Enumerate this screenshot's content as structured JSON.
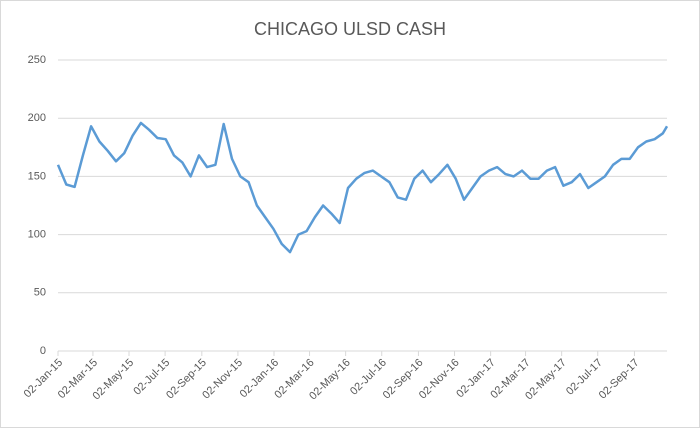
{
  "chart_data": {
    "type": "line",
    "title": "CHICAGO ULSD CASH",
    "color": "#5b9bd5",
    "grid": true,
    "x": [
      "2015-01-02",
      "2015-01-16",
      "2015-01-30",
      "2015-02-13",
      "2015-02-27",
      "2015-03-13",
      "2015-03-27",
      "2015-04-10",
      "2015-04-24",
      "2015-05-08",
      "2015-05-22",
      "2015-06-05",
      "2015-06-19",
      "2015-07-03",
      "2015-07-17",
      "2015-07-31",
      "2015-08-14",
      "2015-08-28",
      "2015-09-11",
      "2015-09-25",
      "2015-10-09",
      "2015-10-23",
      "2015-11-06",
      "2015-11-20",
      "2015-12-04",
      "2015-12-18",
      "2016-01-01",
      "2016-01-15",
      "2016-01-29",
      "2016-02-12",
      "2016-02-26",
      "2016-03-11",
      "2016-03-25",
      "2016-04-08",
      "2016-04-22",
      "2016-05-06",
      "2016-05-20",
      "2016-06-03",
      "2016-06-17",
      "2016-07-01",
      "2016-07-15",
      "2016-07-29",
      "2016-08-12",
      "2016-08-26",
      "2016-09-09",
      "2016-09-23",
      "2016-10-07",
      "2016-10-21",
      "2016-11-04",
      "2016-11-18",
      "2016-12-02",
      "2016-12-16",
      "2016-12-30",
      "2017-01-13",
      "2017-01-27",
      "2017-02-10",
      "2017-02-24",
      "2017-03-10",
      "2017-03-24",
      "2017-04-07",
      "2017-04-21",
      "2017-05-05",
      "2017-05-19",
      "2017-06-02",
      "2017-06-16",
      "2017-06-30",
      "2017-07-14",
      "2017-07-28",
      "2017-08-11",
      "2017-08-25",
      "2017-09-08",
      "2017-09-22",
      "2017-10-06",
      "2017-10-20",
      "2017-10-27"
    ],
    "values": [
      160,
      143,
      141,
      168,
      193,
      180,
      172,
      163,
      170,
      185,
      196,
      190,
      183,
      182,
      168,
      162,
      150,
      168,
      158,
      160,
      195,
      165,
      150,
      145,
      125,
      115,
      105,
      92,
      85,
      100,
      103,
      115,
      125,
      118,
      110,
      140,
      148,
      153,
      155,
      150,
      145,
      132,
      130,
      148,
      155,
      145,
      152,
      160,
      148,
      130,
      140,
      150,
      155,
      158,
      152,
      150,
      155,
      148,
      148,
      155,
      158,
      142,
      145,
      152,
      140,
      145,
      150,
      160,
      165,
      165,
      175,
      180,
      182,
      187,
      193
    ],
    "xlim": [
      "2015-01-02",
      "2017-10-27"
    ],
    "xticks": [
      {
        "value": "2015-01-02",
        "label": "02-Jan-15"
      },
      {
        "value": "2015-03-02",
        "label": "02-Mar-15"
      },
      {
        "value": "2015-05-02",
        "label": "02-May-15"
      },
      {
        "value": "2015-07-02",
        "label": "02-Jul-15"
      },
      {
        "value": "2015-09-02",
        "label": "02-Sep-15"
      },
      {
        "value": "2015-11-02",
        "label": "02-Nov-15"
      },
      {
        "value": "2016-01-02",
        "label": "02-Jan-16"
      },
      {
        "value": "2016-03-02",
        "label": "02-Mar-16"
      },
      {
        "value": "2016-05-02",
        "label": "02-May-16"
      },
      {
        "value": "2016-07-02",
        "label": "02-Jul-16"
      },
      {
        "value": "2016-09-02",
        "label": "02-Sep-16"
      },
      {
        "value": "2016-11-02",
        "label": "02-Nov-16"
      },
      {
        "value": "2017-01-02",
        "label": "02-Jan-17"
      },
      {
        "value": "2017-03-02",
        "label": "02-Mar-17"
      },
      {
        "value": "2017-05-02",
        "label": "02-May-17"
      },
      {
        "value": "2017-07-02",
        "label": "02-Jul-17"
      },
      {
        "value": "2017-09-02",
        "label": "02-Sep-17"
      }
    ],
    "ylim": [
      0,
      250
    ],
    "yticks": [
      0,
      50,
      100,
      150,
      200,
      250
    ]
  }
}
